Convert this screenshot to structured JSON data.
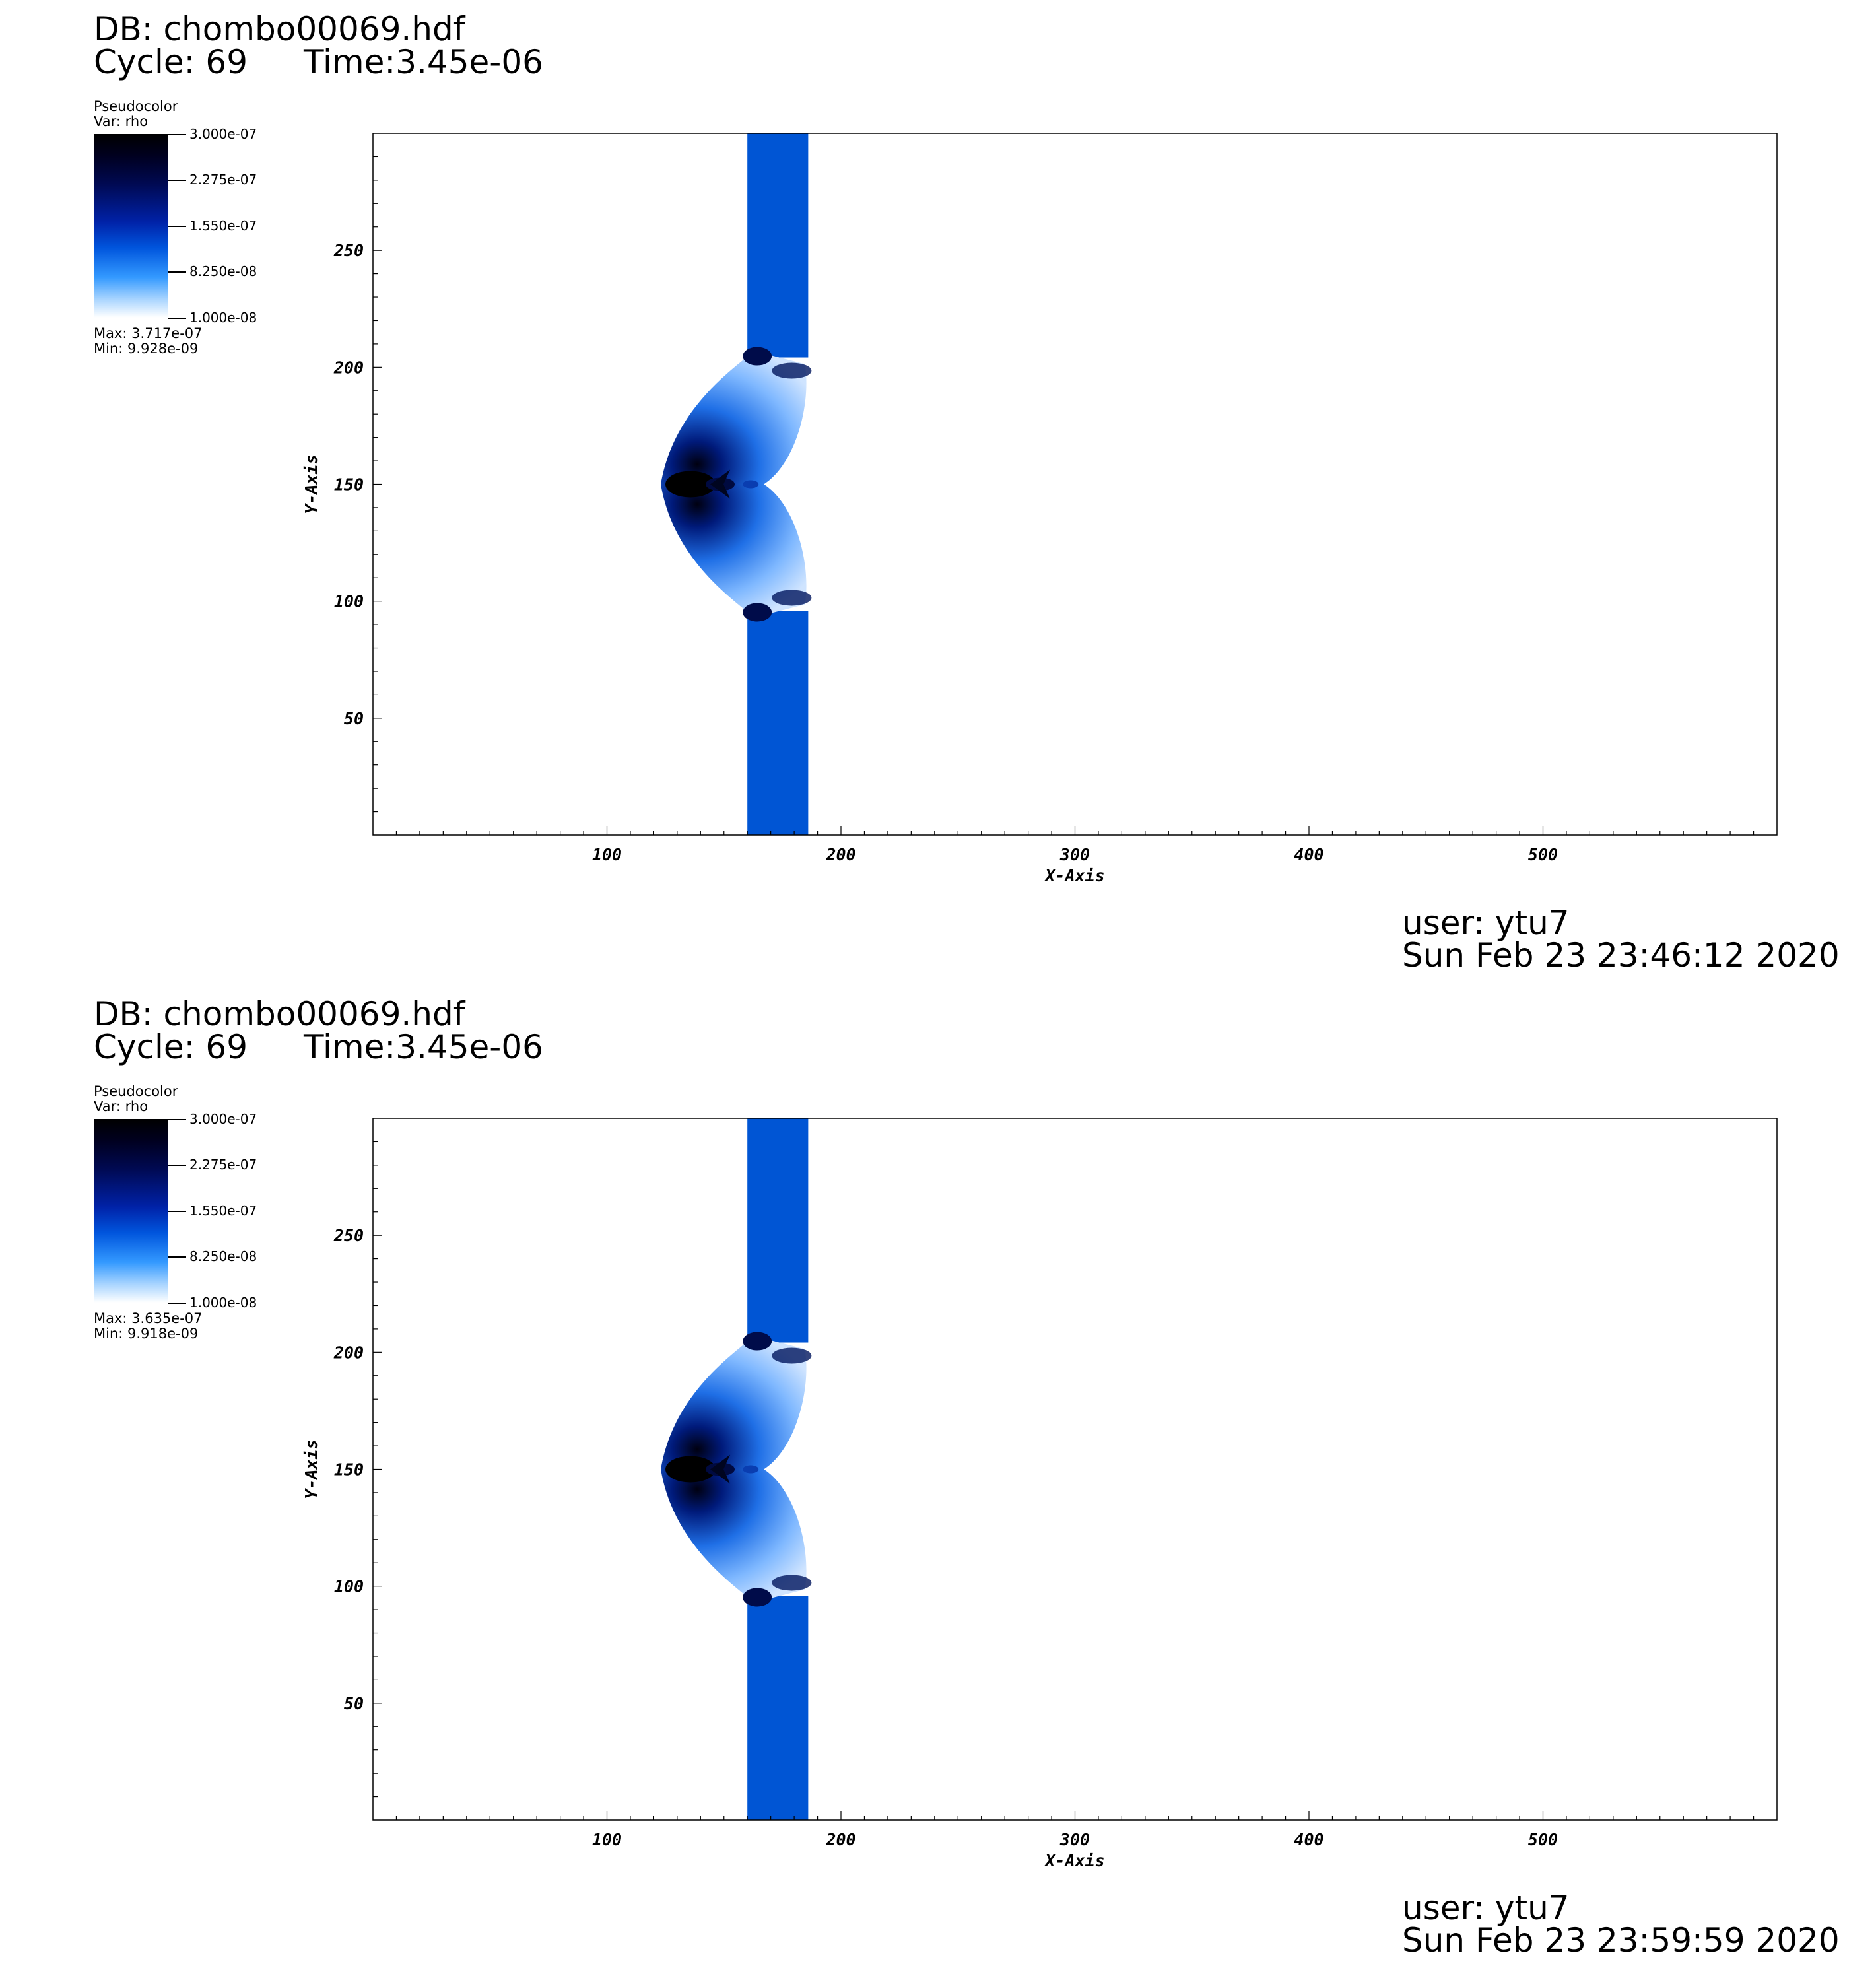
{
  "panels": [
    {
      "db": "DB: chombo00069.hdf",
      "cycle": "Cycle: 69",
      "time": "Time:3.45e-06",
      "legend": {
        "plot_type": "Pseudocolor",
        "var": "Var: rho",
        "ticks": [
          "3.000e-07",
          "2.275e-07",
          "1.550e-07",
          "8.250e-08",
          "1.000e-08"
        ],
        "max": "Max:  3.717e-07",
        "min": "Min:  9.928e-09"
      },
      "user": "user: ytu7",
      "date": "Sun Feb 23 23:46:12 2020"
    },
    {
      "db": "DB: chombo00069.hdf",
      "cycle": "Cycle: 69",
      "time": "Time:3.45e-06",
      "legend": {
        "plot_type": "Pseudocolor",
        "var": "Var: rho",
        "ticks": [
          "3.000e-07",
          "2.275e-07",
          "1.550e-07",
          "8.250e-08",
          "1.000e-08"
        ],
        "max": "Max:  3.635e-07",
        "min": "Min:  9.918e-09"
      },
      "user": "user: ytu7",
      "date": "Sun Feb 23 23:59:59 2020"
    }
  ],
  "chart_data": [
    {
      "type": "heatmap",
      "title": "",
      "xlabel": "X-Axis",
      "ylabel": "Y-Axis",
      "xlim": [
        0,
        600
      ],
      "ylim": [
        0,
        300
      ],
      "x_ticks": [
        100,
        200,
        300,
        400,
        500
      ],
      "y_ticks": [
        50,
        100,
        150,
        200,
        250
      ],
      "colorscale": {
        "variable": "rho",
        "min": 1e-08,
        "max": 3e-07,
        "colors": [
          "#ffffff",
          "#3399ff",
          "#0055dd",
          "#000a55",
          "#000000"
        ]
      },
      "features": {
        "band": {
          "x_min": 160,
          "x_max": 186,
          "y_min": 0,
          "y_max": 300,
          "color": "#0055d4"
        },
        "bow": {
          "x_left": 123,
          "x_right": 186,
          "y_min": 93,
          "y_max": 207,
          "center_y": 150
        }
      }
    },
    {
      "type": "heatmap",
      "title": "",
      "xlabel": "X-Axis",
      "ylabel": "Y-Axis",
      "xlim": [
        0,
        600
      ],
      "ylim": [
        0,
        300
      ],
      "x_ticks": [
        100,
        200,
        300,
        400,
        500
      ],
      "y_ticks": [
        50,
        100,
        150,
        200,
        250
      ],
      "colorscale": {
        "variable": "rho",
        "min": 1e-08,
        "max": 3e-07,
        "colors": [
          "#ffffff",
          "#3399ff",
          "#0055dd",
          "#000a55",
          "#000000"
        ]
      },
      "features": {
        "band": {
          "x_min": 160,
          "x_max": 186,
          "y_min": 0,
          "y_max": 300,
          "color": "#0055d4"
        },
        "bow": {
          "x_left": 123,
          "x_right": 186,
          "y_min": 93,
          "y_max": 207,
          "center_y": 150
        }
      }
    }
  ]
}
